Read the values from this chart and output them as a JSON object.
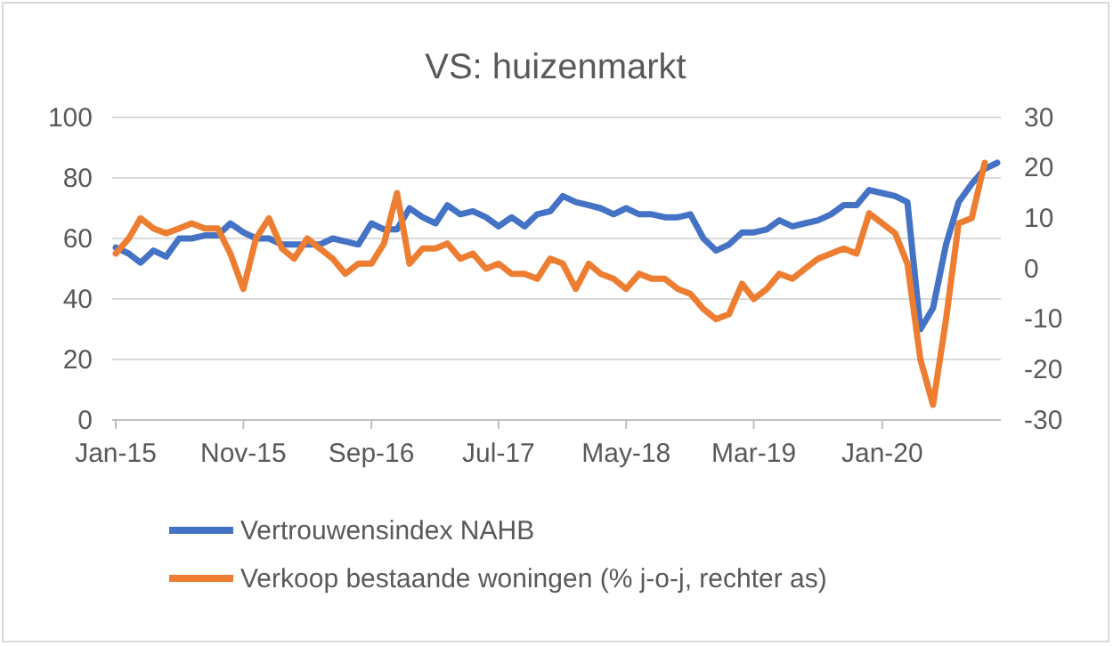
{
  "chart_data": {
    "type": "line",
    "title": "VS: huizenmarkt",
    "x": [
      "2015-01",
      "2015-02",
      "2015-03",
      "2015-04",
      "2015-05",
      "2015-06",
      "2015-07",
      "2015-08",
      "2015-09",
      "2015-10",
      "2015-11",
      "2015-12",
      "2016-01",
      "2016-02",
      "2016-03",
      "2016-04",
      "2016-05",
      "2016-06",
      "2016-07",
      "2016-08",
      "2016-09",
      "2016-10",
      "2016-11",
      "2016-12",
      "2017-01",
      "2017-02",
      "2017-03",
      "2017-04",
      "2017-05",
      "2017-06",
      "2017-07",
      "2017-08",
      "2017-09",
      "2017-10",
      "2017-11",
      "2017-12",
      "2018-01",
      "2018-02",
      "2018-03",
      "2018-04",
      "2018-05",
      "2018-06",
      "2018-07",
      "2018-08",
      "2018-09",
      "2018-10",
      "2018-11",
      "2018-12",
      "2019-01",
      "2019-02",
      "2019-03",
      "2019-04",
      "2019-05",
      "2019-06",
      "2019-07",
      "2019-08",
      "2019-09",
      "2019-10",
      "2019-11",
      "2019-12",
      "2020-01",
      "2020-02",
      "2020-03",
      "2020-04",
      "2020-05",
      "2020-06",
      "2020-07",
      "2020-08",
      "2020-09",
      "2020-10"
    ],
    "xlim": [
      "2015-01",
      "2020-10"
    ],
    "xticks": [
      {
        "value": "2015-01",
        "label": "Jan-15"
      },
      {
        "value": "2015-11",
        "label": "Nov-15"
      },
      {
        "value": "2016-09",
        "label": "Sep-16"
      },
      {
        "value": "2017-07",
        "label": "Jul-17"
      },
      {
        "value": "2018-05",
        "label": "May-18"
      },
      {
        "value": "2019-03",
        "label": "Mar-19"
      },
      {
        "value": "2020-01",
        "label": "Jan-20"
      }
    ],
    "ylim": [
      0,
      100
    ],
    "yticks": [
      0,
      20,
      40,
      60,
      80,
      100
    ],
    "y2lim": [
      -30,
      30
    ],
    "y2ticks": [
      -30,
      -20,
      -10,
      0,
      10,
      20,
      30
    ],
    "grid": "y",
    "legend": "bottom",
    "line_style": "solid",
    "series": [
      {
        "name": "Vertrouwensindex NAHB",
        "color": "#4472c4",
        "values": [
          57,
          55,
          52,
          56,
          54,
          60,
          60,
          61,
          61,
          65,
          62,
          60,
          60,
          58,
          58,
          58,
          58,
          60,
          59,
          58,
          65,
          63,
          63,
          70,
          67,
          65,
          71,
          68,
          69,
          67,
          64,
          67,
          64,
          68,
          69,
          74,
          72,
          71,
          70,
          68,
          70,
          68,
          68,
          67,
          67,
          68,
          60,
          56,
          58,
          62,
          62,
          63,
          66,
          64,
          65,
          66,
          68,
          71,
          71,
          76,
          75,
          74,
          72,
          30,
          37,
          58,
          72,
          78,
          83,
          85
        ]
      },
      {
        "name": "Verkoop bestaande woningen (% j-o-j, rechter as)",
        "color": "#ed7d31",
        "axis": "y2",
        "values": [
          3,
          6,
          10,
          8,
          7,
          8,
          9,
          8,
          8,
          3,
          -4,
          6,
          10,
          4,
          2,
          6,
          4,
          2,
          -1,
          1,
          1,
          5,
          15,
          1,
          4,
          4,
          5,
          2,
          3,
          0,
          1,
          -1,
          -1,
          -2,
          2,
          1,
          -4,
          1,
          -1,
          -2,
          -4,
          -1,
          -2,
          -2,
          -4,
          -5,
          -8,
          -10,
          -9,
          -3,
          -6,
          -4,
          -1,
          -2,
          0,
          2,
          3,
          4,
          3,
          11,
          9,
          7,
          1,
          -18,
          -27,
          -10,
          9,
          10,
          21,
          null
        ]
      }
    ]
  }
}
